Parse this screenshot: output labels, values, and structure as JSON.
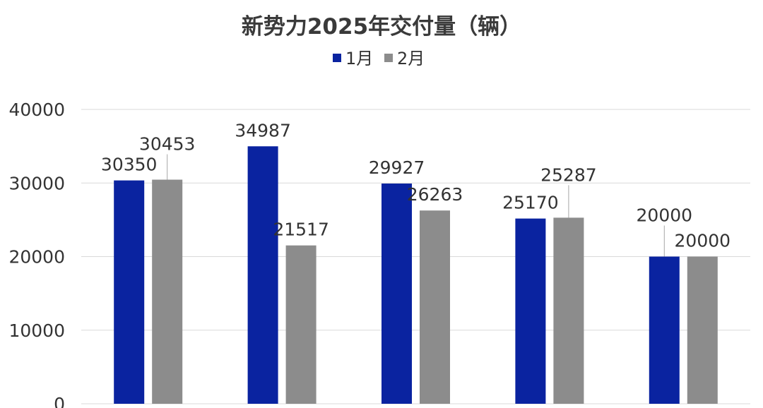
{
  "chart_data": {
    "type": "bar",
    "title": "新势力2025年交付量（辆）",
    "xlabel": "",
    "ylabel": "",
    "categories": [
      "",
      "",
      "",
      "",
      ""
    ],
    "series": [
      {
        "name": "1月",
        "color": "#0a23a0",
        "values": [
          30350,
          34987,
          29927,
          25170,
          20000
        ]
      },
      {
        "name": "2月",
        "color": "#8c8c8c",
        "values": [
          30453,
          21517,
          26263,
          25287,
          20000
        ]
      }
    ],
    "ylim": [
      0,
      40000
    ],
    "yticks": [
      0,
      10000,
      20000,
      30000,
      40000
    ],
    "grid": true,
    "legend": "top-center"
  }
}
